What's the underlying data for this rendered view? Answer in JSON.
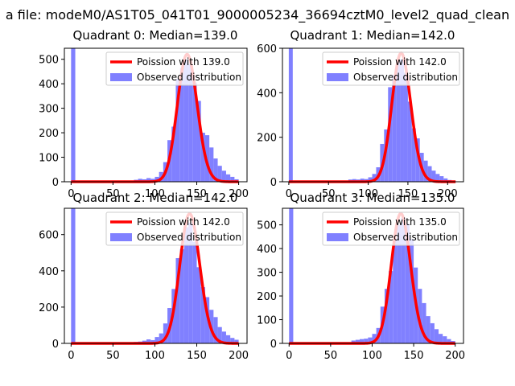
{
  "suptitle": "a file: modeM0/AS1T05_041T01_9000005234_36694cztM0_level2_quad_clean",
  "colors": {
    "hist": "#8080ff",
    "curve": "#ff0000",
    "axis": "#000000",
    "background": "#ffffff"
  },
  "chart_data": [
    {
      "type": "bar",
      "title": "Quadrant 0: Median=139.0",
      "legend": {
        "position": "top-right",
        "curve_label": "Poission with 139.0",
        "hist_label": "Observed distribution"
      },
      "xlim": [
        -8,
        210
      ],
      "ylim": [
        0,
        545
      ],
      "xticks": [
        0,
        50,
        100,
        150,
        200
      ],
      "yticks": [
        0,
        100,
        200,
        300,
        400,
        500
      ],
      "bin_width": 5,
      "bins": [
        {
          "x": 0,
          "y": 545
        },
        {
          "x": 75,
          "y": 8
        },
        {
          "x": 80,
          "y": 12
        },
        {
          "x": 85,
          "y": 10
        },
        {
          "x": 90,
          "y": 15
        },
        {
          "x": 95,
          "y": 12
        },
        {
          "x": 100,
          "y": 20
        },
        {
          "x": 105,
          "y": 40
        },
        {
          "x": 110,
          "y": 80
        },
        {
          "x": 115,
          "y": 170
        },
        {
          "x": 120,
          "y": 225
        },
        {
          "x": 125,
          "y": 420
        },
        {
          "x": 130,
          "y": 465
        },
        {
          "x": 135,
          "y": 500
        },
        {
          "x": 140,
          "y": 480
        },
        {
          "x": 145,
          "y": 405
        },
        {
          "x": 150,
          "y": 330
        },
        {
          "x": 155,
          "y": 200
        },
        {
          "x": 160,
          "y": 190
        },
        {
          "x": 165,
          "y": 140
        },
        {
          "x": 170,
          "y": 95
        },
        {
          "x": 175,
          "y": 65
        },
        {
          "x": 180,
          "y": 45
        },
        {
          "x": 185,
          "y": 30
        },
        {
          "x": 190,
          "y": 20
        },
        {
          "x": 195,
          "y": 10
        }
      ],
      "poisson": {
        "lambda": 139.0,
        "peak": 520,
        "x_start": 0,
        "x_end": 200
      }
    },
    {
      "type": "bar",
      "title": "Quadrant 1: Median=142.0",
      "legend": {
        "position": "top-right",
        "curve_label": "Poission with 142.0",
        "hist_label": "Observed distribution"
      },
      "xlim": [
        -8,
        220
      ],
      "ylim": [
        0,
        600
      ],
      "xticks": [
        0,
        50,
        100,
        150,
        200
      ],
      "yticks": [
        0,
        200,
        400,
        600
      ],
      "bin_width": 5,
      "bins": [
        {
          "x": 0,
          "y": 600
        },
        {
          "x": 75,
          "y": 10
        },
        {
          "x": 80,
          "y": 12
        },
        {
          "x": 85,
          "y": 10
        },
        {
          "x": 90,
          "y": 14
        },
        {
          "x": 95,
          "y": 12
        },
        {
          "x": 100,
          "y": 20
        },
        {
          "x": 105,
          "y": 35
        },
        {
          "x": 110,
          "y": 65
        },
        {
          "x": 115,
          "y": 170
        },
        {
          "x": 120,
          "y": 235
        },
        {
          "x": 125,
          "y": 425
        },
        {
          "x": 130,
          "y": 480
        },
        {
          "x": 135,
          "y": 540
        },
        {
          "x": 140,
          "y": 550
        },
        {
          "x": 145,
          "y": 490
        },
        {
          "x": 150,
          "y": 360
        },
        {
          "x": 155,
          "y": 240
        },
        {
          "x": 160,
          "y": 195
        },
        {
          "x": 165,
          "y": 130
        },
        {
          "x": 170,
          "y": 95
        },
        {
          "x": 175,
          "y": 70
        },
        {
          "x": 180,
          "y": 50
        },
        {
          "x": 185,
          "y": 35
        },
        {
          "x": 190,
          "y": 25
        },
        {
          "x": 195,
          "y": 15
        },
        {
          "x": 200,
          "y": 8
        },
        {
          "x": 205,
          "y": 5
        }
      ],
      "poisson": {
        "lambda": 142.0,
        "peak": 578,
        "x_start": 0,
        "x_end": 210
      }
    },
    {
      "type": "bar",
      "title": "Quadrant 2: Median=142.0",
      "legend": {
        "position": "top-right",
        "curve_label": "Poission with 142.0",
        "hist_label": "Observed distribution"
      },
      "xlim": [
        -8,
        210
      ],
      "ylim": [
        0,
        745
      ],
      "xticks": [
        0,
        50,
        100,
        150,
        200
      ],
      "yticks": [
        0,
        200,
        400,
        600
      ],
      "bin_width": 5,
      "bins": [
        {
          "x": 0,
          "y": 745
        },
        {
          "x": 70,
          "y": 5
        },
        {
          "x": 75,
          "y": 8
        },
        {
          "x": 80,
          "y": 10
        },
        {
          "x": 85,
          "y": 15
        },
        {
          "x": 90,
          "y": 22
        },
        {
          "x": 95,
          "y": 18
        },
        {
          "x": 100,
          "y": 35
        },
        {
          "x": 105,
          "y": 55
        },
        {
          "x": 110,
          "y": 110
        },
        {
          "x": 115,
          "y": 195
        },
        {
          "x": 120,
          "y": 300
        },
        {
          "x": 125,
          "y": 470
        },
        {
          "x": 130,
          "y": 520
        },
        {
          "x": 135,
          "y": 640
        },
        {
          "x": 140,
          "y": 665
        },
        {
          "x": 145,
          "y": 560
        },
        {
          "x": 150,
          "y": 420
        },
        {
          "x": 155,
          "y": 310
        },
        {
          "x": 160,
          "y": 255
        },
        {
          "x": 165,
          "y": 185
        },
        {
          "x": 170,
          "y": 145
        },
        {
          "x": 175,
          "y": 90
        },
        {
          "x": 180,
          "y": 65
        },
        {
          "x": 185,
          "y": 45
        },
        {
          "x": 190,
          "y": 30
        },
        {
          "x": 195,
          "y": 20
        }
      ],
      "poisson": {
        "lambda": 142.0,
        "peak": 715,
        "x_start": 0,
        "x_end": 200
      }
    },
    {
      "type": "bar",
      "title": "Quadrant 3: Median=135.0",
      "legend": {
        "position": "top-right",
        "curve_label": "Poission with 135.0",
        "hist_label": "Observed distribution"
      },
      "xlim": [
        -8,
        210
      ],
      "ylim": [
        0,
        570
      ],
      "xticks": [
        0,
        50,
        100,
        150,
        200
      ],
      "yticks": [
        0,
        100,
        200,
        300,
        400,
        500
      ],
      "bin_width": 5,
      "bins": [
        {
          "x": 0,
          "y": 570
        },
        {
          "x": 75,
          "y": 12
        },
        {
          "x": 80,
          "y": 15
        },
        {
          "x": 85,
          "y": 18
        },
        {
          "x": 90,
          "y": 20
        },
        {
          "x": 95,
          "y": 25
        },
        {
          "x": 100,
          "y": 40
        },
        {
          "x": 105,
          "y": 65
        },
        {
          "x": 110,
          "y": 155
        },
        {
          "x": 115,
          "y": 230
        },
        {
          "x": 120,
          "y": 305
        },
        {
          "x": 125,
          "y": 440
        },
        {
          "x": 130,
          "y": 500
        },
        {
          "x": 135,
          "y": 530
        },
        {
          "x": 140,
          "y": 505
        },
        {
          "x": 145,
          "y": 440
        },
        {
          "x": 150,
          "y": 320
        },
        {
          "x": 155,
          "y": 230
        },
        {
          "x": 160,
          "y": 170
        },
        {
          "x": 165,
          "y": 115
        },
        {
          "x": 170,
          "y": 85
        },
        {
          "x": 175,
          "y": 60
        },
        {
          "x": 180,
          "y": 40
        },
        {
          "x": 185,
          "y": 30
        },
        {
          "x": 190,
          "y": 18
        },
        {
          "x": 195,
          "y": 10
        }
      ],
      "poisson": {
        "lambda": 135.0,
        "peak": 548,
        "x_start": 0,
        "x_end": 200
      }
    }
  ]
}
